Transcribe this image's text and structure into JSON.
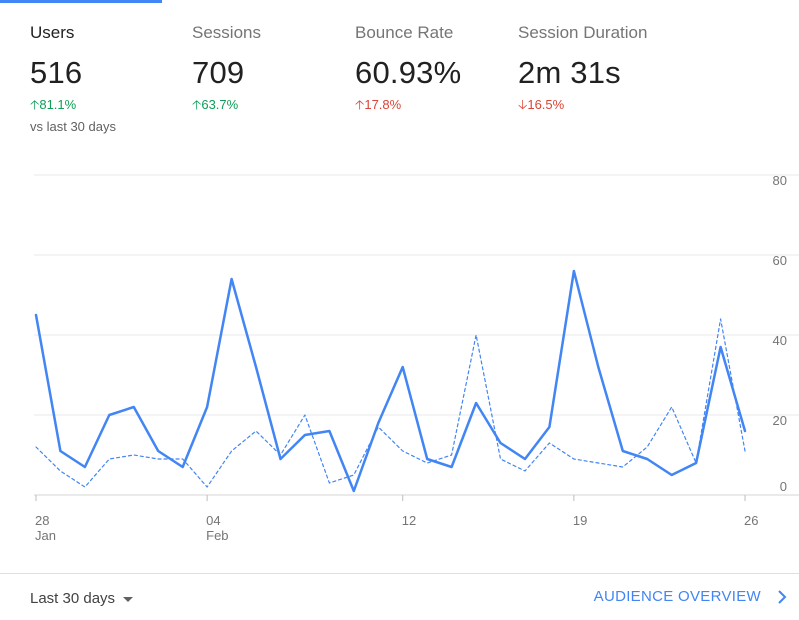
{
  "metrics": [
    {
      "label": "Users",
      "value": "516",
      "delta": "81.1%",
      "direction": "up",
      "tone": "good",
      "compare": "vs last 30 days"
    },
    {
      "label": "Sessions",
      "value": "709",
      "delta": "63.7%",
      "direction": "up",
      "tone": "good"
    },
    {
      "label": "Bounce Rate",
      "value": "60.93%",
      "delta": "17.8%",
      "direction": "up",
      "tone": "bad"
    },
    {
      "label": "Session Duration",
      "value": "2m 31s",
      "delta": "16.5%",
      "direction": "down",
      "tone": "bad"
    }
  ],
  "colors": {
    "accent": "#4285f4",
    "good": "#0f9d58",
    "bad": "#db4437",
    "grid": "#e8e8e8"
  },
  "chart_data": {
    "type": "line",
    "x_tick_labels": [
      {
        "day": "28",
        "month": "Jan"
      },
      {
        "day": "04",
        "month": "Feb"
      },
      {
        "day": "12",
        "month": ""
      },
      {
        "day": "19",
        "month": ""
      },
      {
        "day": "26",
        "month": ""
      }
    ],
    "x_tick_index": [
      0,
      7,
      15,
      22,
      29
    ],
    "y_ticks": [
      "80",
      "60",
      "40",
      "20",
      "0"
    ],
    "ylim": [
      0,
      80
    ],
    "grid": true,
    "series": [
      {
        "style": "solid",
        "values": [
          45,
          11,
          7,
          20,
          22,
          11,
          7,
          22,
          54,
          32,
          9,
          15,
          16,
          1,
          18,
          32,
          9,
          7,
          23,
          13,
          9,
          17,
          56,
          32,
          11,
          9,
          5,
          8,
          37,
          16
        ]
      },
      {
        "style": "dashed",
        "values": [
          12,
          6,
          2,
          9,
          10,
          9,
          9,
          2,
          11,
          16,
          10,
          20,
          3,
          5,
          17,
          11,
          8,
          10,
          40,
          9,
          6,
          13,
          9,
          8,
          7,
          12,
          22,
          8,
          44,
          11
        ]
      }
    ]
  },
  "footer": {
    "range_label": "Last 30 days",
    "overview_label": "AUDIENCE OVERVIEW"
  }
}
